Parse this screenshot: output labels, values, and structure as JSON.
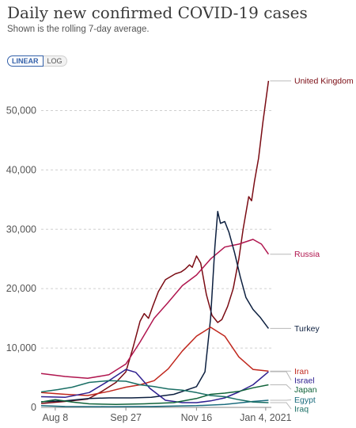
{
  "header": {
    "title": "Daily new confirmed COVID-19 cases",
    "subtitle": "Shown is the rolling 7-day average."
  },
  "controls": {
    "linear_label": "LINEAR",
    "log_label": "LOG",
    "selected": "LINEAR"
  },
  "chart_data": {
    "type": "line",
    "title": "Daily new confirmed COVID-19 cases",
    "subtitle": "Shown is the rolling 7-day average.",
    "xlabel": "",
    "ylabel": "",
    "scale": "linear",
    "ylim": [
      0,
      55000
    ],
    "xlim": [
      "2020-07-29",
      "2021-01-08"
    ],
    "yticks": [
      0,
      10000,
      20000,
      30000,
      40000,
      50000
    ],
    "ytick_labels": [
      "0",
      "10,000",
      "20,000",
      "30,000",
      "40,000",
      "50,000"
    ],
    "xticks": [
      "2020-08-08",
      "2020-09-27",
      "2020-11-16",
      "2021-01-04"
    ],
    "xtick_labels": [
      "Aug 8",
      "Sep 27",
      "Nov 16",
      "Jan 4, 2021"
    ],
    "grid": "horizontal dashed",
    "legend": "right, labels at line ends",
    "series": [
      {
        "name": "United Kingdom",
        "color": "#7a0b13",
        "points": [
          [
            "2020-07-29",
            650
          ],
          [
            "2020-08-15",
            1000
          ],
          [
            "2020-08-31",
            1400
          ],
          [
            "2020-09-10",
            2700
          ],
          [
            "2020-09-20",
            4200
          ],
          [
            "2020-09-27",
            6000
          ],
          [
            "2020-10-02",
            10000
          ],
          [
            "2020-10-07",
            14500
          ],
          [
            "2020-10-10",
            15800
          ],
          [
            "2020-10-13",
            15000
          ],
          [
            "2020-10-16",
            17000
          ],
          [
            "2020-10-20",
            19500
          ],
          [
            "2020-10-25",
            21500
          ],
          [
            "2020-11-01",
            22500
          ],
          [
            "2020-11-05",
            22800
          ],
          [
            "2020-11-08",
            23300
          ],
          [
            "2020-11-11",
            24000
          ],
          [
            "2020-11-13",
            23600
          ],
          [
            "2020-11-16",
            25500
          ],
          [
            "2020-11-19",
            24300
          ],
          [
            "2020-11-23",
            19000
          ],
          [
            "2020-11-27",
            15500
          ],
          [
            "2020-12-01",
            14300
          ],
          [
            "2020-12-04",
            14800
          ],
          [
            "2020-12-08",
            17000
          ],
          [
            "2020-12-12",
            20000
          ],
          [
            "2020-12-16",
            25000
          ],
          [
            "2020-12-19",
            30000
          ],
          [
            "2020-12-23",
            35500
          ],
          [
            "2020-12-25",
            34800
          ],
          [
            "2020-12-27",
            38000
          ],
          [
            "2020-12-30",
            42000
          ],
          [
            "2021-01-02",
            48000
          ],
          [
            "2021-01-06",
            55000
          ]
        ]
      },
      {
        "name": "Russia",
        "color": "#b0154e",
        "points": [
          [
            "2020-07-29",
            5700
          ],
          [
            "2020-08-15",
            5200
          ],
          [
            "2020-08-31",
            4900
          ],
          [
            "2020-09-15",
            5500
          ],
          [
            "2020-09-27",
            7300
          ],
          [
            "2020-10-07",
            11000
          ],
          [
            "2020-10-17",
            15000
          ],
          [
            "2020-10-27",
            17700
          ],
          [
            "2020-11-06",
            20500
          ],
          [
            "2020-11-16",
            22300
          ],
          [
            "2020-11-26",
            25000
          ],
          [
            "2020-12-06",
            27000
          ],
          [
            "2020-12-16",
            27500
          ],
          [
            "2020-12-26",
            28300
          ],
          [
            "2021-01-01",
            27500
          ],
          [
            "2021-01-06",
            25800
          ]
        ]
      },
      {
        "name": "Turkey",
        "color": "#0c1f3f",
        "points": [
          [
            "2020-07-29",
            950
          ],
          [
            "2020-08-15",
            1100
          ],
          [
            "2020-09-01",
            1500
          ],
          [
            "2020-09-15",
            1600
          ],
          [
            "2020-10-01",
            1600
          ],
          [
            "2020-10-15",
            1700
          ],
          [
            "2020-10-31",
            2200
          ],
          [
            "2020-11-16",
            3500
          ],
          [
            "2020-11-22",
            6000
          ],
          [
            "2020-11-26",
            15000
          ],
          [
            "2020-11-29",
            27000
          ],
          [
            "2020-12-01",
            33000
          ],
          [
            "2020-12-03",
            31000
          ],
          [
            "2020-12-06",
            31300
          ],
          [
            "2020-12-09",
            29500
          ],
          [
            "2020-12-13",
            26000
          ],
          [
            "2020-12-17",
            22000
          ],
          [
            "2020-12-21",
            18500
          ],
          [
            "2020-12-26",
            16500
          ],
          [
            "2020-12-31",
            15200
          ],
          [
            "2021-01-06",
            13300
          ]
        ]
      },
      {
        "name": "Iran",
        "color": "#c0271d",
        "points": [
          [
            "2020-07-29",
            2500
          ],
          [
            "2020-08-15",
            2200
          ],
          [
            "2020-08-31",
            2000
          ],
          [
            "2020-09-15",
            2700
          ],
          [
            "2020-09-27",
            3400
          ],
          [
            "2020-10-07",
            3800
          ],
          [
            "2020-10-17",
            4500
          ],
          [
            "2020-10-27",
            6500
          ],
          [
            "2020-11-06",
            9500
          ],
          [
            "2020-11-16",
            12000
          ],
          [
            "2020-11-26",
            13500
          ],
          [
            "2020-12-06",
            12000
          ],
          [
            "2020-12-16",
            8500
          ],
          [
            "2020-12-26",
            6400
          ],
          [
            "2021-01-06",
            6100
          ]
        ]
      },
      {
        "name": "Israel",
        "color": "#2f2090",
        "points": [
          [
            "2020-07-29",
            1800
          ],
          [
            "2020-08-15",
            1700
          ],
          [
            "2020-09-01",
            2500
          ],
          [
            "2020-09-15",
            4500
          ],
          [
            "2020-09-27",
            6400
          ],
          [
            "2020-10-04",
            5900
          ],
          [
            "2020-10-14",
            3200
          ],
          [
            "2020-10-25",
            1200
          ],
          [
            "2020-11-06",
            800
          ],
          [
            "2020-11-16",
            800
          ],
          [
            "2020-11-26",
            1100
          ],
          [
            "2020-12-06",
            1600
          ],
          [
            "2020-12-16",
            2600
          ],
          [
            "2020-12-26",
            3800
          ],
          [
            "2021-01-06",
            6000
          ]
        ]
      },
      {
        "name": "Japan",
        "color": "#11633a",
        "points": [
          [
            "2020-07-29",
            900
          ],
          [
            "2020-08-08",
            1300
          ],
          [
            "2020-08-20",
            900
          ],
          [
            "2020-09-01",
            600
          ],
          [
            "2020-09-20",
            500
          ],
          [
            "2020-10-10",
            600
          ],
          [
            "2020-10-31",
            800
          ],
          [
            "2020-11-16",
            1500
          ],
          [
            "2020-11-26",
            2200
          ],
          [
            "2020-12-06",
            2400
          ],
          [
            "2020-12-16",
            2700
          ],
          [
            "2020-12-26",
            3300
          ],
          [
            "2021-01-06",
            3800
          ]
        ]
      },
      {
        "name": "Egypt",
        "color": "#1b6c7e",
        "points": [
          [
            "2020-07-29",
            300
          ],
          [
            "2020-08-15",
            150
          ],
          [
            "2020-09-15",
            120
          ],
          [
            "2020-10-15",
            150
          ],
          [
            "2020-11-16",
            300
          ],
          [
            "2020-12-06",
            500
          ],
          [
            "2020-12-26",
            1000
          ],
          [
            "2021-01-06",
            1200
          ]
        ]
      },
      {
        "name": "Iraq",
        "color": "#1a6f65",
        "points": [
          [
            "2020-07-29",
            2600
          ],
          [
            "2020-08-10",
            3000
          ],
          [
            "2020-08-20",
            3400
          ],
          [
            "2020-09-01",
            4200
          ],
          [
            "2020-09-15",
            4500
          ],
          [
            "2020-09-27",
            4400
          ],
          [
            "2020-10-07",
            3800
          ],
          [
            "2020-10-17",
            3500
          ],
          [
            "2020-10-27",
            3100
          ],
          [
            "2020-11-06",
            2900
          ],
          [
            "2020-11-16",
            2500
          ],
          [
            "2020-11-26",
            2000
          ],
          [
            "2020-12-06",
            1800
          ],
          [
            "2020-12-16",
            1300
          ],
          [
            "2020-12-26",
            900
          ],
          [
            "2021-01-06",
            800
          ]
        ]
      }
    ]
  }
}
